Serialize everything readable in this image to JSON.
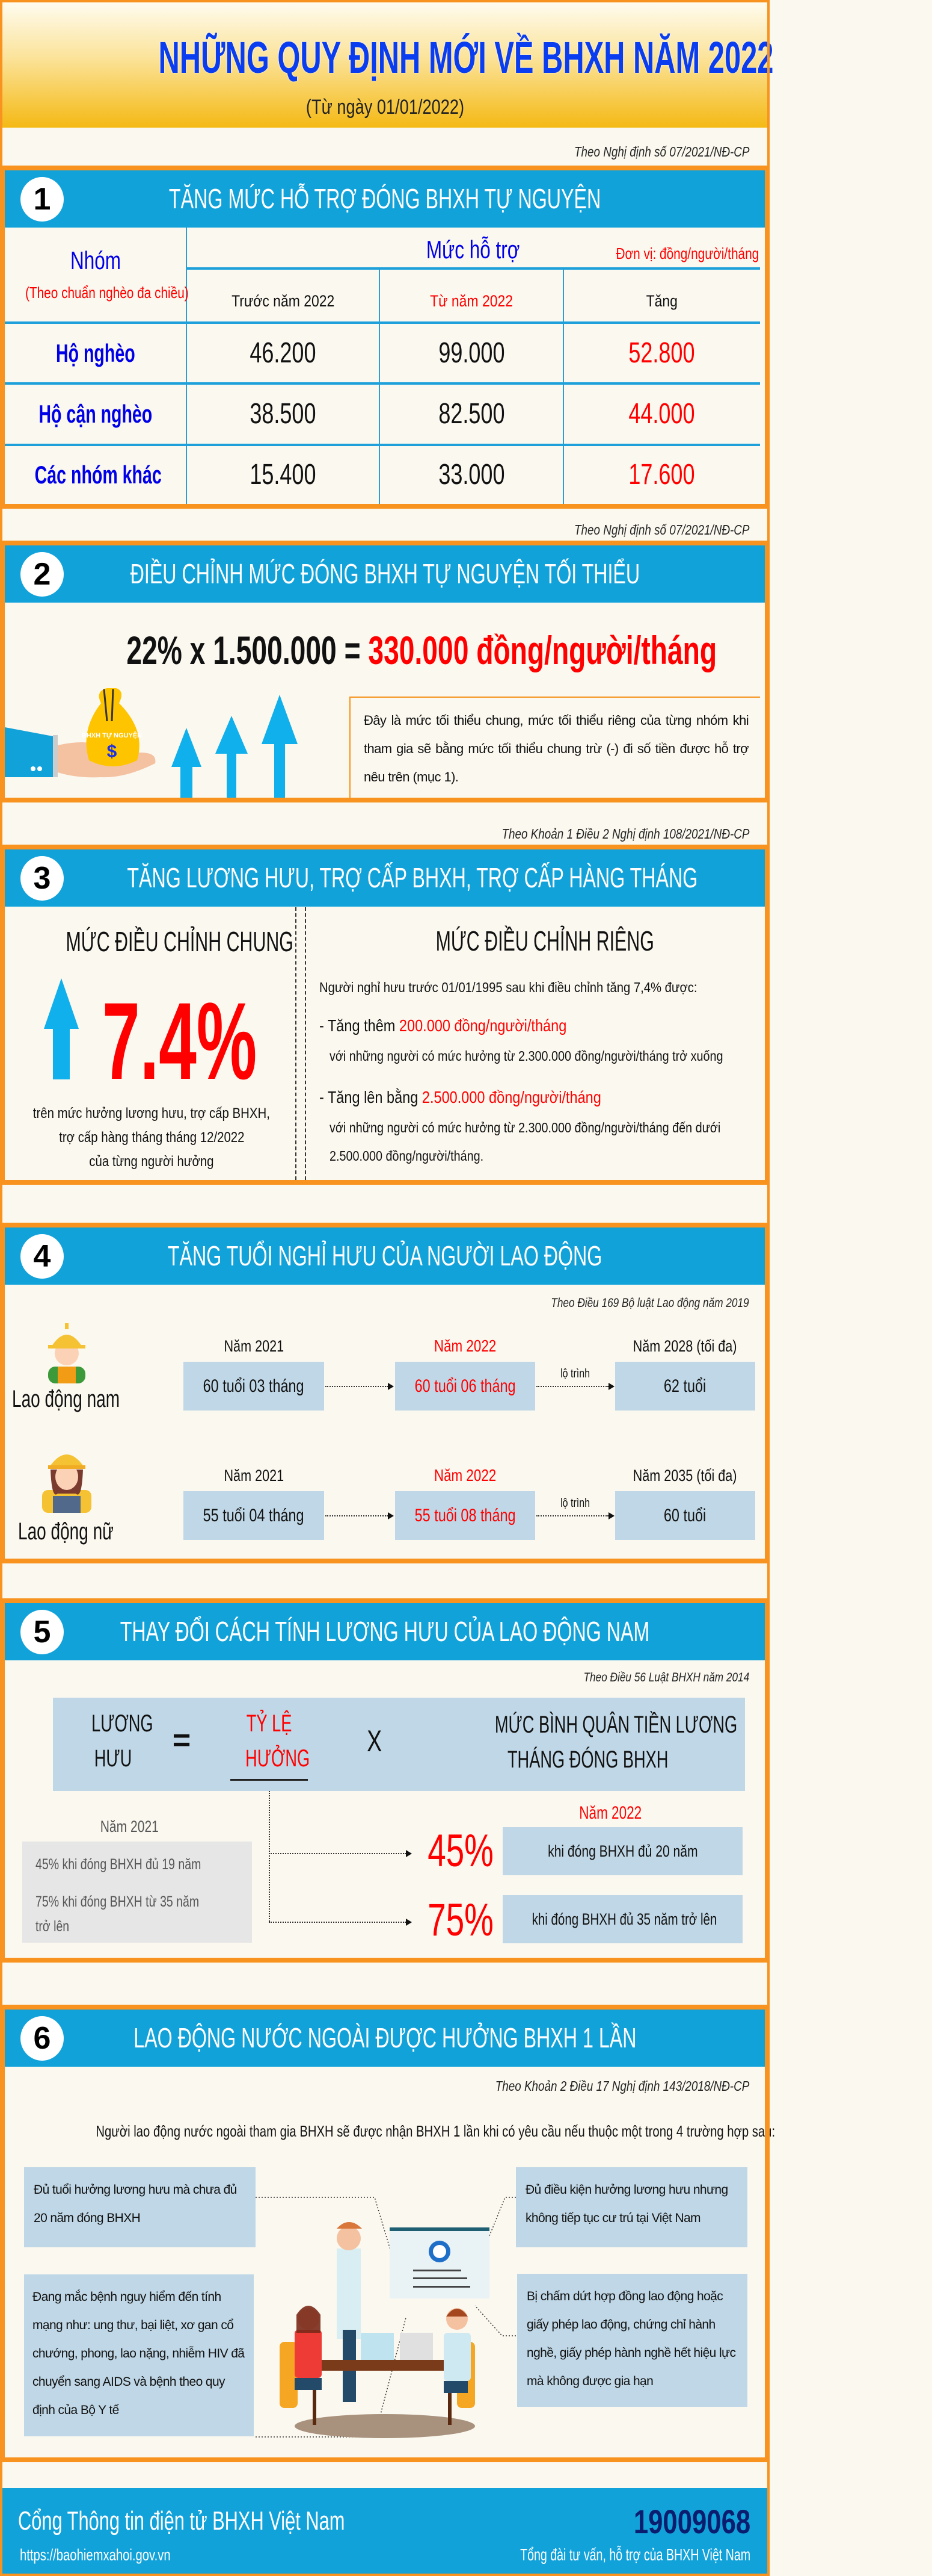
{
  "header": {
    "title": "NHỮNG QUY ĐỊNH MỚI VỀ BHXH NĂM 2022",
    "subtitle": "(Từ ngày 01/01/2022)"
  },
  "strips": [
    "Theo Nghị định số 07/2021/NĐ-CP",
    "Theo Nghị định số 07/2021/NĐ-CP",
    "Theo Khoản 1 Điều 2 Nghị định 108/2021/NĐ-CP"
  ],
  "s1": {
    "num": "1",
    "title": "TĂNG MỨC HỖ TRỢ ĐÓNG BHXH TỰ NGUYỆN",
    "group_header": "Nhóm",
    "group_note": "(Theo chuẩn nghèo đa chiều)",
    "support_header": "Mức hỗ trợ",
    "unit": "Đơn vị: đồng/người/tháng",
    "columns": [
      "Trước năm 2022",
      "Từ năm 2022",
      "Tăng"
    ],
    "rows": [
      {
        "group": "Hộ nghèo",
        "before": "46.200",
        "after": "99.000",
        "increase": "52.800"
      },
      {
        "group": "Hộ cận nghèo",
        "before": "38.500",
        "after": "82.500",
        "increase": "44.000"
      },
      {
        "group": "Các nhóm khác",
        "before": "15.400",
        "after": "33.000",
        "increase": "17.600"
      }
    ]
  },
  "s2": {
    "num": "2",
    "title": "ĐIỀU CHỈNH MỨC ĐÓNG BHXH TỰ NGUYỆN TỐI THIỂU",
    "formula_left": "22% x 1.500.000 = ",
    "formula_result": "330.000 đồng/người/tháng",
    "bag_label": "BHXH TỰ NGUYỆN",
    "bag_symbol": "$",
    "note": "Đây là mức tối thiểu chung, mức tối thiểu riêng của từng nhóm khi tham gia sẽ bằng mức tối thiểu chung trừ (-) đi số tiền được hỗ trợ nêu trên (mục 1)."
  },
  "s3": {
    "num": "3",
    "title": "TĂNG LƯƠNG HƯU, TRỢ CẤP BHXH, TRỢ CẤP HÀNG THÁNG",
    "general_heading": "MỨC ĐIỀU CHỈNH CHUNG",
    "general_value": "7.4%",
    "general_caption": [
      "trên mức hưởng lương hưu, trợ cấp BHXH,",
      "trợ cấp hàng tháng tháng 12/2022",
      "của từng người hưởng"
    ],
    "specific_heading": "MỨC ĐIỀU CHỈNH RIÊNG",
    "intro": "Người nghỉ hưu trước 01/01/1995 sau khi điều chỉnh tăng 7,4% được:",
    "bullets": [
      {
        "prefix": "- Tăng thêm ",
        "highlight": "200.000 đồng/người/tháng",
        "detail": [
          "với những người có mức hưởng từ 2.300.000 đồng/người/tháng trở xuống"
        ]
      },
      {
        "prefix": "- Tăng lên bằng ",
        "highlight": "2.500.000 đồng/người/tháng",
        "detail": [
          "với những người có mức hưởng từ 2.300.000 đồng/người/tháng đến dưới",
          "2.500.000 đồng/người/tháng."
        ]
      }
    ]
  },
  "s4": {
    "num": "4",
    "title": "TĂNG TUỔI NGHỈ HƯU CỦA NGƯỜI LAO ĐỘNG",
    "source": "Theo Điều 169 Bộ luật Lao động năm 2019",
    "path_label": "lộ trình",
    "rows": [
      {
        "label": "Lao động nam",
        "y1": "Năm 2021",
        "v1": "60 tuổi 03 tháng",
        "y2": "Năm 2022",
        "v2": "60 tuổi 06 tháng",
        "y3": "Năm 2028 (tối đa)",
        "v3": "62 tuổi"
      },
      {
        "label": "Lao động nữ",
        "y1": "Năm 2021",
        "v1": "55 tuổi 04 tháng",
        "y2": "Năm 2022",
        "v2": "55 tuổi 08 tháng",
        "y3": "Năm 2035 (tối đa)",
        "v3": "60 tuổi"
      }
    ]
  },
  "s5": {
    "num": "5",
    "title": "THAY ĐỔI CÁCH TÍNH LƯƠNG HƯU CỦA LAO ĐỘNG NAM",
    "source": "Theo Điều 56 Luật BHXH năm 2014",
    "formula": {
      "left_1": "LƯƠNG",
      "left_2": "HƯU",
      "eq": "=",
      "rate_1": "TỶ LỆ",
      "rate_2": "HƯỞNG",
      "times": "X",
      "right_1": "MỨC BÌNH QUÂN TIỀN LƯƠNG",
      "right_2": "THÁNG ĐÓNG BHXH"
    },
    "old_label": "Năm 2021",
    "old_items": [
      "45% khi đóng BHXH đủ 19 năm",
      "75% khi đóng BHXH từ 35 năm",
      "trở lên"
    ],
    "new_label": "Năm 2022",
    "new_items": [
      {
        "pct": "45%",
        "desc": "khi đóng BHXH đủ 20 năm"
      },
      {
        "pct": "75%",
        "desc": "khi đóng BHXH đủ 35 năm trở lên"
      }
    ]
  },
  "s6": {
    "num": "6",
    "title": "LAO ĐỘNG NƯỚC NGOÀI ĐƯỢC HƯỞNG BHXH 1 LẦN",
    "source": "Theo Khoản 2 Điều 17 Nghị định 143/2018/NĐ-CP",
    "intro": "Người lao động nước ngoài tham gia BHXH sẽ được nhận BHXH 1 lần khi có yêu cầu nếu thuộc một trong 4 trường hợp sau:",
    "cases": [
      "Đủ tuổi hưởng lương hưu mà chưa đủ 20 năm đóng BHXH",
      "Đủ điều kiện hưởng lương hưu nhưng không tiếp tục cư trú tại Việt Nam",
      "Đang mắc bệnh nguy hiểm đến tính mạng như: ung thư, bại liệt, xơ gan cổ chướng, phong, lao nặng, nhiễm HIV đã chuyển sang AIDS và bệnh theo quy định của Bộ Y tế",
      "Bị chấm dứt hợp đồng lao động hoặc giấy phép lao động, chứng chỉ hành nghề, giấy phép hành nghề hết hiệu lực mà không được gia hạn"
    ]
  },
  "footer": {
    "portal": "Cổng Thông tin điện tử BHXH Việt Nam",
    "url": "https://baohiemxahoi.gov.vn",
    "hotline": "19009068",
    "hotline_desc": "Tổng đài tư vấn, hỗ trợ của BHXH Việt Nam"
  },
  "colors": {
    "frame": "#f7931e",
    "section_bar": "#12a2da",
    "title": "#0a3cf0",
    "highlight": "#ff0000",
    "box": "#bfd7e6",
    "hotline": "#0b1d6e"
  }
}
